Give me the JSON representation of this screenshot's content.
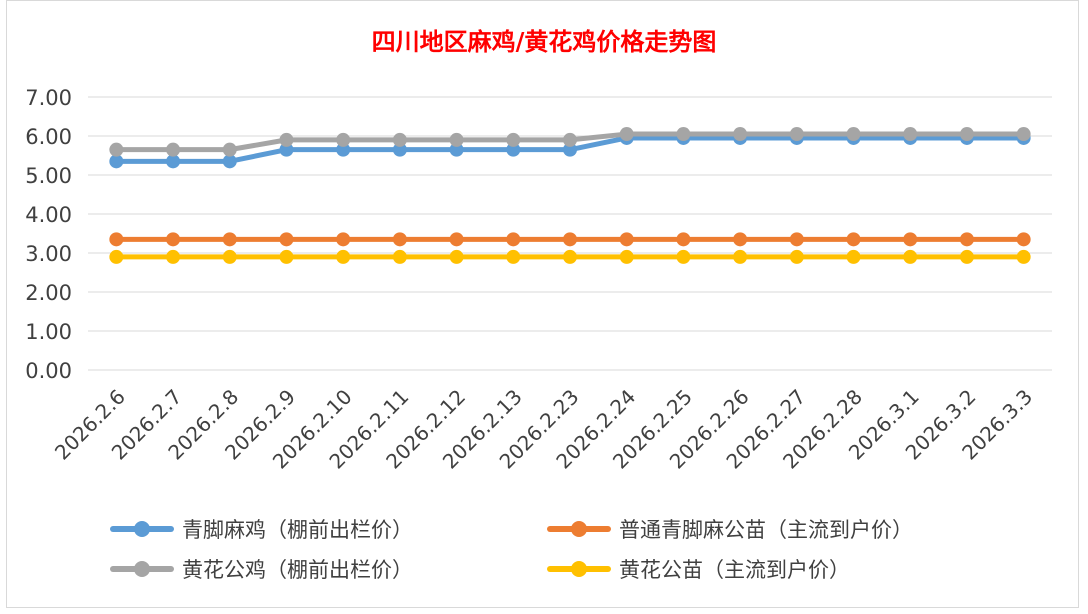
{
  "chart_data": {
    "type": "line",
    "title": "四川地区麻鸡/黄花鸡价格走势图",
    "categories": [
      "2026.2.6",
      "2026.2.7",
      "2026.2.8",
      "2026.2.9",
      "2026.2.10",
      "2026.2.11",
      "2026.2.12",
      "2026.2.13",
      "2026.2.23",
      "2026.2.24",
      "2026.2.25",
      "2026.2.26",
      "2026.2.27",
      "2026.2.28",
      "2026.3.1",
      "2026.3.2",
      "2026.3.3"
    ],
    "yticks": [
      "0.00",
      "1.00",
      "2.00",
      "3.00",
      "4.00",
      "5.00",
      "6.00",
      "7.00"
    ],
    "ylim": [
      0,
      7
    ],
    "grid": true,
    "legend_position": "bottom",
    "series": [
      {
        "name": "青脚麻鸡（棚前出栏价）",
        "color": "#5b9bd5",
        "values": [
          5.35,
          5.35,
          5.35,
          5.65,
          5.65,
          5.65,
          5.65,
          5.65,
          5.65,
          5.95,
          5.95,
          5.95,
          5.95,
          5.95,
          5.95,
          5.95,
          5.95
        ]
      },
      {
        "name": "普通青脚麻公苗（主流到户价）",
        "color": "#ed7d31",
        "values": [
          3.35,
          3.35,
          3.35,
          3.35,
          3.35,
          3.35,
          3.35,
          3.35,
          3.35,
          3.35,
          3.35,
          3.35,
          3.35,
          3.35,
          3.35,
          3.35,
          3.35
        ]
      },
      {
        "name": "黄花公鸡（棚前出栏价）",
        "color": "#a5a5a5",
        "values": [
          5.65,
          5.65,
          5.65,
          5.9,
          5.9,
          5.9,
          5.9,
          5.9,
          5.9,
          6.05,
          6.05,
          6.05,
          6.05,
          6.05,
          6.05,
          6.05,
          6.05
        ]
      },
      {
        "name": "黄花公苗（主流到户价）",
        "color": "#ffc000",
        "values": [
          2.9,
          2.9,
          2.9,
          2.9,
          2.9,
          2.9,
          2.9,
          2.9,
          2.9,
          2.9,
          2.9,
          2.9,
          2.9,
          2.9,
          2.9,
          2.9,
          2.9
        ]
      }
    ]
  }
}
